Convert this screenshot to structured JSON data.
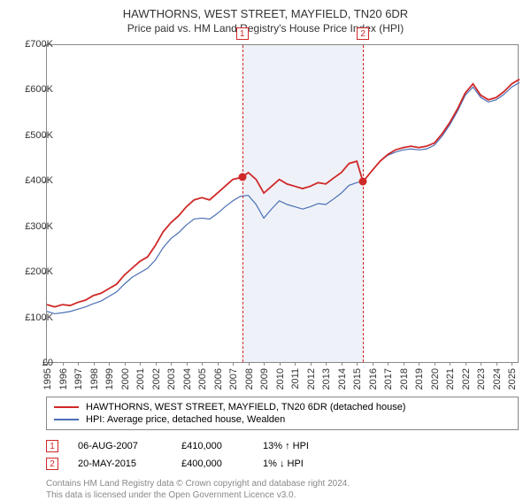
{
  "title": "HAWTHORNS, WEST STREET, MAYFIELD, TN20 6DR",
  "subtitle": "Price paid vs. HM Land Registry's House Price Index (HPI)",
  "chart": {
    "type": "line",
    "background_color": "#ffffff",
    "border_color": "#888888",
    "shaded_region": {
      "x_start": 2007.6,
      "x_end": 2015.4,
      "color": "#eef2f8"
    },
    "xlim": [
      1995,
      2025.5
    ],
    "ylim": [
      0,
      700000
    ],
    "yticks": [
      0,
      100000,
      200000,
      300000,
      400000,
      500000,
      600000,
      700000
    ],
    "ytick_labels": [
      "£0",
      "£100K",
      "£200K",
      "£300K",
      "£400K",
      "£500K",
      "£600K",
      "£700K"
    ],
    "xticks": [
      1995,
      1996,
      1997,
      1998,
      1999,
      2000,
      2001,
      2002,
      2003,
      2004,
      2005,
      2006,
      2007,
      2008,
      2009,
      2010,
      2011,
      2012,
      2013,
      2014,
      2015,
      2016,
      2017,
      2018,
      2019,
      2020,
      2021,
      2022,
      2023,
      2024,
      2025
    ],
    "series": [
      {
        "name": "HAWTHORNS, WEST STREET, MAYFIELD, TN20 6DR (detached house)",
        "color": "#d02828",
        "width": 1.8,
        "points": [
          [
            1995,
            130000
          ],
          [
            1995.5,
            125000
          ],
          [
            1996,
            130000
          ],
          [
            1996.5,
            128000
          ],
          [
            1997,
            135000
          ],
          [
            1997.5,
            140000
          ],
          [
            1998,
            150000
          ],
          [
            1998.5,
            155000
          ],
          [
            1999,
            165000
          ],
          [
            1999.5,
            175000
          ],
          [
            2000,
            195000
          ],
          [
            2000.5,
            210000
          ],
          [
            2001,
            225000
          ],
          [
            2001.5,
            235000
          ],
          [
            2002,
            260000
          ],
          [
            2002.5,
            290000
          ],
          [
            2003,
            310000
          ],
          [
            2003.5,
            325000
          ],
          [
            2004,
            345000
          ],
          [
            2004.5,
            360000
          ],
          [
            2005,
            365000
          ],
          [
            2005.5,
            360000
          ],
          [
            2006,
            375000
          ],
          [
            2006.5,
            390000
          ],
          [
            2007,
            405000
          ],
          [
            2007.6,
            410000
          ],
          [
            2008,
            420000
          ],
          [
            2008.5,
            405000
          ],
          [
            2009,
            375000
          ],
          [
            2009.5,
            390000
          ],
          [
            2010,
            405000
          ],
          [
            2010.5,
            395000
          ],
          [
            2011,
            390000
          ],
          [
            2011.5,
            385000
          ],
          [
            2012,
            390000
          ],
          [
            2012.5,
            398000
          ],
          [
            2013,
            395000
          ],
          [
            2013.5,
            408000
          ],
          [
            2014,
            420000
          ],
          [
            2014.5,
            440000
          ],
          [
            2015,
            445000
          ],
          [
            2015.4,
            400000
          ],
          [
            2016,
            425000
          ],
          [
            2016.5,
            445000
          ],
          [
            2017,
            460000
          ],
          [
            2017.5,
            470000
          ],
          [
            2018,
            475000
          ],
          [
            2018.5,
            478000
          ],
          [
            2019,
            475000
          ],
          [
            2019.5,
            478000
          ],
          [
            2020,
            485000
          ],
          [
            2020.5,
            505000
          ],
          [
            2021,
            530000
          ],
          [
            2021.5,
            560000
          ],
          [
            2022,
            595000
          ],
          [
            2022.5,
            615000
          ],
          [
            2023,
            590000
          ],
          [
            2023.5,
            580000
          ],
          [
            2024,
            585000
          ],
          [
            2024.5,
            598000
          ],
          [
            2025,
            615000
          ],
          [
            2025.5,
            625000
          ]
        ]
      },
      {
        "name": "HPI: Average price, detached house, Wealden",
        "color": "#4a6fb5",
        "width": 1.2,
        "points": [
          [
            1995,
            115000
          ],
          [
            1995.5,
            110000
          ],
          [
            1996,
            112000
          ],
          [
            1996.5,
            115000
          ],
          [
            1997,
            120000
          ],
          [
            1997.5,
            125000
          ],
          [
            1998,
            132000
          ],
          [
            1998.5,
            138000
          ],
          [
            1999,
            148000
          ],
          [
            1999.5,
            158000
          ],
          [
            2000,
            175000
          ],
          [
            2000.5,
            190000
          ],
          [
            2001,
            200000
          ],
          [
            2001.5,
            210000
          ],
          [
            2002,
            228000
          ],
          [
            2002.5,
            255000
          ],
          [
            2003,
            275000
          ],
          [
            2003.5,
            288000
          ],
          [
            2004,
            305000
          ],
          [
            2004.5,
            318000
          ],
          [
            2005,
            320000
          ],
          [
            2005.5,
            318000
          ],
          [
            2006,
            330000
          ],
          [
            2006.5,
            345000
          ],
          [
            2007,
            358000
          ],
          [
            2007.5,
            368000
          ],
          [
            2008,
            370000
          ],
          [
            2008.5,
            350000
          ],
          [
            2009,
            320000
          ],
          [
            2009.5,
            340000
          ],
          [
            2010,
            358000
          ],
          [
            2010.5,
            350000
          ],
          [
            2011,
            345000
          ],
          [
            2011.5,
            340000
          ],
          [
            2012,
            345000
          ],
          [
            2012.5,
            352000
          ],
          [
            2013,
            350000
          ],
          [
            2013.5,
            362000
          ],
          [
            2014,
            375000
          ],
          [
            2014.5,
            392000
          ],
          [
            2015,
            398000
          ],
          [
            2015.4,
            400000
          ],
          [
            2016,
            425000
          ],
          [
            2016.5,
            445000
          ],
          [
            2017,
            458000
          ],
          [
            2017.5,
            465000
          ],
          [
            2018,
            470000
          ],
          [
            2018.5,
            472000
          ],
          [
            2019,
            470000
          ],
          [
            2019.5,
            472000
          ],
          [
            2020,
            480000
          ],
          [
            2020.5,
            500000
          ],
          [
            2021,
            525000
          ],
          [
            2021.5,
            555000
          ],
          [
            2022,
            590000
          ],
          [
            2022.5,
            608000
          ],
          [
            2023,
            585000
          ],
          [
            2023.5,
            575000
          ],
          [
            2024,
            580000
          ],
          [
            2024.5,
            592000
          ],
          [
            2025,
            608000
          ],
          [
            2025.5,
            618000
          ]
        ]
      }
    ],
    "markers": [
      {
        "n": "1",
        "x": 2007.6,
        "y": 410000
      },
      {
        "n": "2",
        "x": 2015.4,
        "y": 400000
      }
    ],
    "marker_color": "#d02828",
    "label_fontsize": 11,
    "title_fontsize": 13
  },
  "legend": {
    "items": [
      {
        "label": "HAWTHORNS, WEST STREET, MAYFIELD, TN20 6DR (detached house)",
        "color": "#d02828"
      },
      {
        "label": "HPI: Average price, detached house, Wealden",
        "color": "#4a6fb5"
      }
    ]
  },
  "transactions": [
    {
      "n": "1",
      "date": "06-AUG-2007",
      "price": "£410,000",
      "delta": "13% ↑ HPI"
    },
    {
      "n": "2",
      "date": "20-MAY-2015",
      "price": "£400,000",
      "delta": "1% ↓ HPI"
    }
  ],
  "footer_lines": [
    "Contains HM Land Registry data © Crown copyright and database right 2024.",
    "This data is licensed under the Open Government Licence v3.0."
  ]
}
